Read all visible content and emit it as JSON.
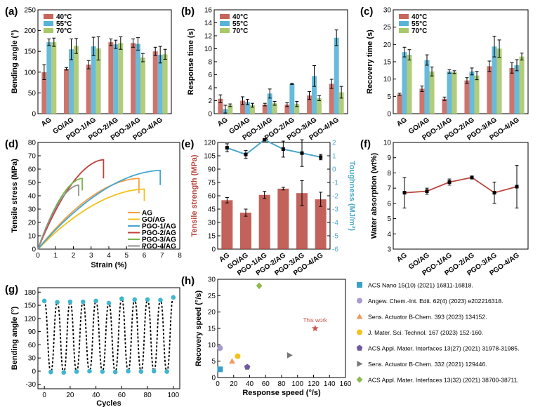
{
  "colors": {
    "c40": "#c8655d",
    "c55": "#58b4d6",
    "c70": "#a9c86a",
    "tensile": "#b9473e",
    "tough": "#4aa9c8",
    "AG": "#f5a043",
    "GO": "#f2c21b",
    "P1": "#44a6d3",
    "P2": "#c1403a",
    "P3": "#7ab84a",
    "P4": "#8f8f8f",
    "cycle_dot": "#40b5cc"
  },
  "chart_data": [
    {
      "id": "a",
      "type": "bar",
      "panel_label": "(a)",
      "categories": [
        "AG",
        "GO/AG",
        "PGO-1/AG",
        "PGO-2/AG",
        "PGO-3/AG",
        "PGO-4/AG"
      ],
      "ylabel": "Bending angle (°)",
      "ylim": [
        0,
        250
      ],
      "yticks": [
        0,
        50,
        100,
        150,
        200,
        250
      ],
      "legend": [
        "40°C",
        "55°C",
        "70°C"
      ],
      "series": [
        {
          "name": "40°C",
          "values": [
            100,
            108,
            118,
            172,
            170,
            150
          ],
          "errors": [
            18,
            3,
            10,
            8,
            10,
            10
          ]
        },
        {
          "name": "55°C",
          "values": [
            172,
            155,
            162,
            167,
            168,
            142
          ],
          "errors": [
            8,
            25,
            22,
            10,
            15,
            20
          ]
        },
        {
          "name": "70°C",
          "values": [
            172,
            163,
            157,
            170,
            135,
            143
          ],
          "errors": [
            10,
            18,
            28,
            15,
            10,
            12
          ]
        }
      ]
    },
    {
      "id": "b",
      "type": "bar",
      "panel_label": "(b)",
      "categories": [
        "AG",
        "GO/AG",
        "PGO-1/AG",
        "PGO-2/AG",
        "PGO-3/AG",
        "PGO-4/AG"
      ],
      "ylabel": "Response time (s)",
      "ylim": [
        0,
        16
      ],
      "yticks": [
        0,
        2,
        4,
        6,
        8,
        10,
        12,
        14,
        16
      ],
      "legend": [
        "40°C",
        "55°C",
        "70°C"
      ],
      "series": [
        {
          "name": "40°C",
          "values": [
            2.3,
            2.0,
            1.4,
            1.4,
            2.8,
            4.6
          ],
          "errors": [
            0.6,
            0.6,
            0.2,
            0.3,
            0.6,
            0.7
          ]
        },
        {
          "name": "55°C",
          "values": [
            0.7,
            1.8,
            3.1,
            4.6,
            5.8,
            11.7
          ],
          "errors": [
            0.6,
            0.4,
            0.7,
            0.1,
            1.6,
            1.2
          ]
        },
        {
          "name": "70°C",
          "values": [
            1.3,
            1.3,
            1.6,
            1.5,
            2.4,
            3.3
          ],
          "errors": [
            0.2,
            0.3,
            0.3,
            0.4,
            0.4,
            0.9
          ]
        }
      ]
    },
    {
      "id": "c",
      "type": "bar",
      "panel_label": "(c)",
      "categories": [
        "AG",
        "GO/AG",
        "PGO-1/AG",
        "PGO-2/AG",
        "PGO-3/AG",
        "PGO-4/AG"
      ],
      "ylabel": "Recovery time (s)",
      "ylim": [
        0,
        30
      ],
      "yticks": [
        0,
        5,
        10,
        15,
        20,
        25,
        30
      ],
      "legend": [
        "40°C",
        "55°C",
        "70°C"
      ],
      "series": [
        {
          "name": "40°C",
          "values": [
            5.6,
            7.2,
            4.3,
            9.6,
            13.7,
            13.2
          ],
          "errors": [
            0.3,
            0.8,
            0.5,
            0.8,
            1.5,
            1.5
          ]
        },
        {
          "name": "55°C",
          "values": [
            17.8,
            15.5,
            12.2,
            12.2,
            19.4,
            14.0
          ],
          "errors": [
            1.4,
            1.5,
            0.5,
            1.0,
            3.0,
            1.6
          ]
        },
        {
          "name": "70°C",
          "values": [
            17.0,
            12.2,
            12.0,
            11.0,
            18.8,
            16.5
          ],
          "errors": [
            1.5,
            1.3,
            0.4,
            1.2,
            2.5,
            1.0
          ]
        }
      ]
    },
    {
      "id": "d",
      "type": "line",
      "panel_label": "(d)",
      "xlabel": "Strain (%)",
      "ylabel": "Tensile stress (MPa)",
      "xlim": [
        0,
        8
      ],
      "ylim": [
        0,
        80
      ],
      "xticks": [
        0,
        1,
        2,
        3,
        4,
        5,
        6,
        7,
        8
      ],
      "yticks": [
        0,
        10,
        20,
        30,
        40,
        50,
        60,
        70,
        80
      ],
      "series": [
        {
          "name": "AG",
          "color_key": "AG",
          "break_strain": 5.7,
          "max_stress": 53,
          "end_stress": 42
        },
        {
          "name": "GO/AG",
          "color_key": "GO",
          "break_strain": 6.0,
          "max_stress": 45,
          "end_stress": 36
        },
        {
          "name": "PGO-1/AG",
          "color_key": "P1",
          "break_strain": 6.9,
          "max_stress": 59,
          "end_stress": 48
        },
        {
          "name": "PGO-2/AG",
          "color_key": "P2",
          "break_strain": 3.7,
          "max_stress": 67,
          "end_stress": 53
        },
        {
          "name": "PGO-3/AG",
          "color_key": "P3",
          "break_strain": 2.5,
          "max_stress": 53,
          "end_stress": 44
        },
        {
          "name": "PGO-4/AG",
          "color_key": "P4",
          "break_strain": 2.3,
          "max_stress": 48,
          "end_stress": 40
        }
      ]
    },
    {
      "id": "e",
      "type": "bar",
      "panel_label": "(e)",
      "categories": [
        "AG",
        "GO/AG",
        "PGO-1/AG",
        "PGO-2/AG",
        "PGO-3/AG",
        "PGO-4/AG"
      ],
      "ylabel": "Tensile strength (MPa)",
      "ylim": [
        0,
        120
      ],
      "yticks": [
        0,
        15,
        30,
        45,
        60,
        75,
        90,
        105,
        120
      ],
      "y2label": "Toughness (MJ/m³)",
      "y2lim": [
        -6,
        2
      ],
      "y2ticks": [
        -6,
        -5,
        -4,
        -3,
        -2,
        -1,
        0,
        1,
        2
      ],
      "series": [
        {
          "name": "Tensile strength",
          "axis": "left",
          "type": "bar",
          "values": [
            55,
            41,
            61,
            68,
            63,
            56
          ],
          "errors": [
            3,
            4,
            4,
            1.5,
            14,
            8
          ]
        },
        {
          "name": "Toughness",
          "axis": "right",
          "type": "line",
          "values": [
            1.6,
            1.1,
            2.2,
            1.5,
            1.2,
            0.9
          ],
          "errors": [
            0.3,
            0.3,
            0.05,
            0.6,
            1.0,
            0.2
          ]
        }
      ]
    },
    {
      "id": "f",
      "type": "line",
      "panel_label": "(f)",
      "categories": [
        "AG",
        "GO/AG",
        "PGO-1/AG",
        "PGO-2/AG",
        "PGO-3/AG",
        "PGO-4/AG"
      ],
      "ylabel": "Water absorption (wt%)",
      "ylim": [
        3,
        10
      ],
      "yticks": [
        3,
        4,
        5,
        6,
        7,
        8,
        9,
        10
      ],
      "series": [
        {
          "name": "Water absorption",
          "values": [
            6.7,
            6.8,
            7.4,
            7.7,
            6.7,
            7.1
          ],
          "errors": [
            1.0,
            0.2,
            0.2,
            0.1,
            0.7,
            1.4
          ]
        }
      ]
    },
    {
      "id": "g",
      "type": "line",
      "panel_label": "(g)",
      "xlabel": "Cycles",
      "ylabel": "Bending angle (°)",
      "xlim": [
        -5,
        105
      ],
      "ylim": [
        -40,
        190
      ],
      "xticks": [
        0,
        20,
        40,
        60,
        80,
        100
      ],
      "yticks": [
        -30,
        0,
        30,
        60,
        90,
        120,
        150,
        180
      ],
      "series": [
        {
          "name": "cycles",
          "x": [
            0,
            5,
            10,
            15,
            20,
            25,
            30,
            35,
            40,
            45,
            50,
            55,
            60,
            65,
            70,
            75,
            80,
            85,
            90,
            95,
            100
          ],
          "values": [
            160,
            -2,
            157,
            -3,
            158,
            -1,
            158,
            0,
            160,
            -1,
            155,
            -2,
            165,
            0,
            163,
            -1,
            163,
            0,
            162,
            -1,
            168
          ]
        }
      ]
    },
    {
      "id": "h",
      "type": "scatter",
      "panel_label": "(h)",
      "xlabel": "Response speed (°/s)",
      "ylabel": "Recovery speed (°/s)",
      "xlim": [
        0,
        160
      ],
      "ylim": [
        0,
        30
      ],
      "xticks": [
        0,
        20,
        40,
        60,
        80,
        100,
        120,
        140,
        160
      ],
      "yticks": [
        0,
        5,
        10,
        15,
        20,
        25,
        30
      ],
      "annotation": "This work",
      "points": [
        {
          "label": "ACS Nano 15(10) (2021) 16811-16818.",
          "x": 3,
          "y": 2.5,
          "shape": "square",
          "color": "#3aa0c8"
        },
        {
          "label": "Angew. Chem.-Int. Edit. 62(4) (2023) e202216318.",
          "x": 3,
          "y": 9,
          "shape": "circle",
          "color": "#a99ad0"
        },
        {
          "label": "Sens. Actuator B-Chem. 393 (2023) 134152.",
          "x": 18,
          "y": 5,
          "shape": "triangle",
          "color": "#f29a5e"
        },
        {
          "label": "J. Mater. Sci. Technol. 167 (2023) 152-160.",
          "x": 25,
          "y": 6.5,
          "shape": "circle",
          "color": "#f2c21b"
        },
        {
          "label": "ACS Appl. Mater. Interfaces 13(27) (2021) 31978-31985.",
          "x": 37,
          "y": 3.2,
          "shape": "pentagon",
          "color": "#6e5a9c"
        },
        {
          "label": "Sens. Actuator B-Chem. 332 (2021) 129446.",
          "x": 90,
          "y": 6.8,
          "shape": "tri-right",
          "color": "#777777"
        },
        {
          "label": "ACS Appl. Mater. Interfaces 13(32) (2021) 38700-38711.",
          "x": 52,
          "y": 28,
          "shape": "diamond",
          "color": "#8eba4a"
        },
        {
          "label": "This work",
          "x": 122,
          "y": 15,
          "shape": "star",
          "color": "#c9574e",
          "legend": false
        }
      ]
    }
  ]
}
